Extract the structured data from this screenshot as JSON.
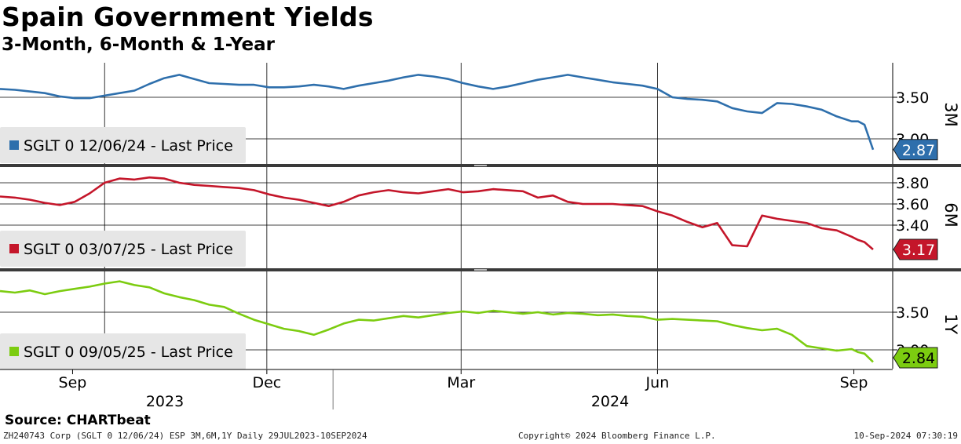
{
  "title": "Spain Government Yields",
  "subtitle": "3-Month, 6-Month & 1-Year",
  "source": "Source: CHARTbeat",
  "footer": {
    "left": "ZH240743 Corp (SGLT 0 12/06/24) ESP 3M,6M,1Y  Daily 29JUL2023-10SEP2024",
    "center": "Copyright© 2024 Bloomberg Finance L.P.",
    "right": "10-Sep-2024 07:30:19"
  },
  "colors": {
    "3M": "#2e6fac",
    "6M": "#c4162a",
    "1Y": "#7ccc10"
  },
  "chart_data": [
    {
      "type": "line",
      "panel": "3M",
      "legend": "SGLT 0 12/06/24 - Last Price",
      "last_value": "2.87",
      "y_ticks": [
        "3.50",
        "3.00"
      ],
      "ylim": [
        2.75,
        3.85
      ],
      "x_tick_labels": [
        "Sep",
        "Dec",
        "Mar",
        "Jun",
        "Sep"
      ],
      "year_labels": [
        "2023",
        "2024"
      ],
      "series": [
        {
          "dates": [
            "2023-07-29",
            "2023-08-05",
            "2023-08-12",
            "2023-08-19",
            "2023-08-26",
            "2023-09-02",
            "2023-09-09",
            "2023-09-16",
            "2023-09-23",
            "2023-09-30",
            "2023-10-07",
            "2023-10-14",
            "2023-10-21",
            "2023-10-28",
            "2023-11-04",
            "2023-11-11",
            "2023-11-18",
            "2023-11-25",
            "2023-12-02",
            "2023-12-09",
            "2023-12-16",
            "2023-12-23",
            "2023-12-30",
            "2024-01-06",
            "2024-01-13",
            "2024-01-20",
            "2024-01-27",
            "2024-02-03",
            "2024-02-10",
            "2024-02-17",
            "2024-02-24",
            "2024-03-02",
            "2024-03-09",
            "2024-03-16",
            "2024-03-23",
            "2024-03-30",
            "2024-04-06",
            "2024-04-13",
            "2024-04-20",
            "2024-04-27",
            "2024-05-04",
            "2024-05-11",
            "2024-05-18",
            "2024-05-25",
            "2024-06-01",
            "2024-06-08",
            "2024-06-15",
            "2024-06-22",
            "2024-06-29",
            "2024-07-06",
            "2024-07-13",
            "2024-07-20",
            "2024-07-27",
            "2024-08-03",
            "2024-08-10",
            "2024-08-17",
            "2024-08-24",
            "2024-08-31",
            "2024-09-03",
            "2024-09-06",
            "2024-09-10"
          ],
          "values": [
            3.6,
            3.59,
            3.57,
            3.55,
            3.51,
            3.49,
            3.49,
            3.52,
            3.55,
            3.58,
            3.66,
            3.73,
            3.77,
            3.72,
            3.67,
            3.66,
            3.65,
            3.65,
            3.62,
            3.62,
            3.63,
            3.65,
            3.63,
            3.6,
            3.64,
            3.67,
            3.7,
            3.74,
            3.77,
            3.75,
            3.72,
            3.67,
            3.63,
            3.6,
            3.63,
            3.67,
            3.71,
            3.74,
            3.77,
            3.74,
            3.71,
            3.68,
            3.66,
            3.64,
            3.6,
            3.5,
            3.48,
            3.47,
            3.45,
            3.37,
            3.33,
            3.31,
            3.43,
            3.42,
            3.39,
            3.35,
            3.27,
            3.21,
            3.21,
            3.17,
            2.87
          ]
        }
      ]
    },
    {
      "type": "line",
      "panel": "6M",
      "legend": "SGLT 0 03/07/25 - Last Price",
      "last_value": "3.17",
      "y_ticks": [
        "3.80",
        "3.60",
        "3.40"
      ],
      "ylim": [
        3.05,
        3.95
      ],
      "series": [
        {
          "dates": [
            "2023-07-29",
            "2023-08-05",
            "2023-08-12",
            "2023-08-19",
            "2023-08-26",
            "2023-09-02",
            "2023-09-09",
            "2023-09-16",
            "2023-09-23",
            "2023-09-30",
            "2023-10-07",
            "2023-10-14",
            "2023-10-21",
            "2023-10-28",
            "2023-11-04",
            "2023-11-11",
            "2023-11-18",
            "2023-11-25",
            "2023-12-02",
            "2023-12-09",
            "2023-12-16",
            "2023-12-23",
            "2023-12-30",
            "2024-01-06",
            "2024-01-13",
            "2024-01-20",
            "2024-01-27",
            "2024-02-03",
            "2024-02-10",
            "2024-02-17",
            "2024-02-24",
            "2024-03-02",
            "2024-03-09",
            "2024-03-16",
            "2024-03-23",
            "2024-03-30",
            "2024-04-06",
            "2024-04-13",
            "2024-04-20",
            "2024-04-27",
            "2024-05-04",
            "2024-05-11",
            "2024-05-18",
            "2024-05-25",
            "2024-06-01",
            "2024-06-08",
            "2024-06-15",
            "2024-06-22",
            "2024-06-29",
            "2024-07-06",
            "2024-07-13",
            "2024-07-20",
            "2024-07-27",
            "2024-08-03",
            "2024-08-10",
            "2024-08-17",
            "2024-08-24",
            "2024-08-31",
            "2024-09-03",
            "2024-09-06",
            "2024-09-10"
          ],
          "values": [
            3.67,
            3.66,
            3.64,
            3.61,
            3.59,
            3.62,
            3.7,
            3.8,
            3.84,
            3.83,
            3.85,
            3.84,
            3.8,
            3.78,
            3.77,
            3.76,
            3.75,
            3.73,
            3.69,
            3.66,
            3.64,
            3.61,
            3.58,
            3.62,
            3.68,
            3.71,
            3.73,
            3.71,
            3.7,
            3.72,
            3.74,
            3.71,
            3.72,
            3.74,
            3.73,
            3.72,
            3.66,
            3.68,
            3.62,
            3.6,
            3.6,
            3.6,
            3.59,
            3.58,
            3.53,
            3.49,
            3.43,
            3.38,
            3.42,
            3.21,
            3.2,
            3.49,
            3.46,
            3.44,
            3.42,
            3.37,
            3.35,
            3.29,
            3.26,
            3.24,
            3.17
          ]
        }
      ]
    },
    {
      "type": "line",
      "panel": "1Y",
      "legend": "SGLT 0 09/05/25 - Last Price",
      "last_value": "2.84",
      "y_ticks": [
        "3.50",
        "3.00"
      ],
      "ylim": [
        2.7,
        4.05
      ],
      "series": [
        {
          "dates": [
            "2023-07-29",
            "2023-08-05",
            "2023-08-12",
            "2023-08-19",
            "2023-08-26",
            "2023-09-02",
            "2023-09-09",
            "2023-09-16",
            "2023-09-23",
            "2023-09-30",
            "2023-10-07",
            "2023-10-14",
            "2023-10-21",
            "2023-10-28",
            "2023-11-04",
            "2023-11-11",
            "2023-11-18",
            "2023-11-25",
            "2023-12-02",
            "2023-12-09",
            "2023-12-16",
            "2023-12-23",
            "2023-12-30",
            "2024-01-06",
            "2024-01-13",
            "2024-01-20",
            "2024-01-27",
            "2024-02-03",
            "2024-02-10",
            "2024-02-17",
            "2024-02-24",
            "2024-03-02",
            "2024-03-09",
            "2024-03-16",
            "2024-03-23",
            "2024-03-30",
            "2024-04-06",
            "2024-04-13",
            "2024-04-20",
            "2024-04-27",
            "2024-05-04",
            "2024-05-11",
            "2024-05-18",
            "2024-05-25",
            "2024-06-01",
            "2024-06-08",
            "2024-06-15",
            "2024-06-22",
            "2024-06-29",
            "2024-07-06",
            "2024-07-13",
            "2024-07-20",
            "2024-07-27",
            "2024-08-03",
            "2024-08-10",
            "2024-08-17",
            "2024-08-24",
            "2024-08-31",
            "2024-09-03",
            "2024-09-06",
            "2024-09-10"
          ],
          "values": [
            3.78,
            3.76,
            3.79,
            3.74,
            3.78,
            3.81,
            3.84,
            3.88,
            3.91,
            3.86,
            3.83,
            3.75,
            3.7,
            3.66,
            3.6,
            3.57,
            3.48,
            3.4,
            3.34,
            3.28,
            3.25,
            3.2,
            3.27,
            3.35,
            3.4,
            3.39,
            3.42,
            3.45,
            3.43,
            3.46,
            3.49,
            3.51,
            3.49,
            3.52,
            3.5,
            3.48,
            3.5,
            3.47,
            3.49,
            3.48,
            3.46,
            3.47,
            3.45,
            3.44,
            3.4,
            3.41,
            3.4,
            3.39,
            3.38,
            3.33,
            3.29,
            3.26,
            3.28,
            3.2,
            3.05,
            3.02,
            2.99,
            3.01,
            2.97,
            2.95,
            2.84
          ]
        }
      ]
    }
  ]
}
